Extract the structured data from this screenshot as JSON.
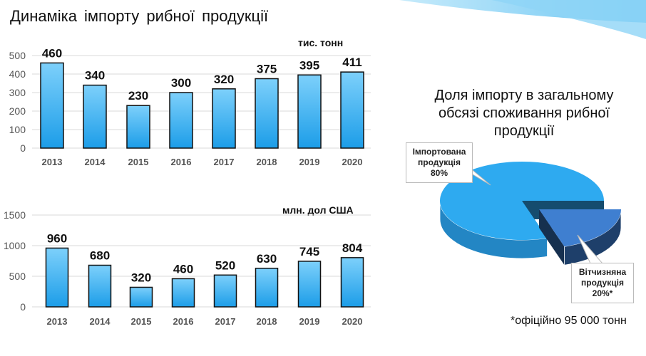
{
  "title": "Динаміка  імпорту  рибної  продукції",
  "chart_data": [
    {
      "type": "bar",
      "title": "Динаміка  імпорту  рибної  продукції",
      "unit": "тис. тонн",
      "categories": [
        "2013",
        "2014",
        "2015",
        "2016",
        "2017",
        "2018",
        "2019",
        "2020"
      ],
      "values": [
        460,
        340,
        230,
        300,
        320,
        375,
        395,
        411
      ],
      "ylim": [
        0,
        500
      ],
      "yticks": [
        0,
        100,
        200,
        300,
        400,
        500
      ],
      "grid": true
    },
    {
      "type": "bar",
      "unit": "млн. дол США",
      "categories": [
        "2013",
        "2014",
        "2015",
        "2016",
        "2017",
        "2018",
        "2019",
        "2020"
      ],
      "values": [
        960,
        680,
        320,
        460,
        520,
        630,
        745,
        804
      ],
      "ylim": [
        0,
        1500
      ],
      "yticks": [
        0,
        500,
        1000,
        1500
      ],
      "grid": true
    },
    {
      "type": "pie",
      "title": "Доля імпорту в загальному обсязі споживання рибної продукції",
      "slices": [
        {
          "label_lines": [
            "Імпортована",
            "продукція",
            "80%"
          ],
          "value": 80,
          "color": "#2eaaf0"
        },
        {
          "label_lines": [
            "Вітчизняна",
            "продукція",
            "20%*"
          ],
          "value": 20,
          "color": "#3f7fd0"
        }
      ]
    }
  ],
  "pie_title_lines": [
    "Доля  імпорту  в загальному",
    "обсязі споживання  рибної",
    "продукції"
  ],
  "footnote": "*офіційно 95 000 тонн"
}
